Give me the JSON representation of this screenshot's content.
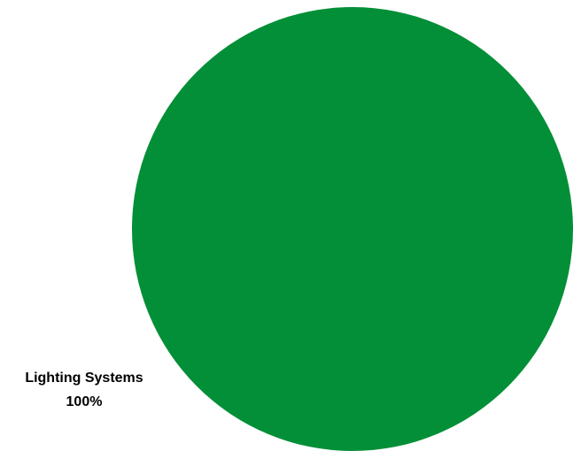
{
  "chart_data": {
    "type": "pie",
    "title": "",
    "legend": "none",
    "slices": [
      {
        "label": "Lighting Systems",
        "value": 100,
        "percent_label": "100%",
        "color": "#038f37"
      }
    ]
  }
}
